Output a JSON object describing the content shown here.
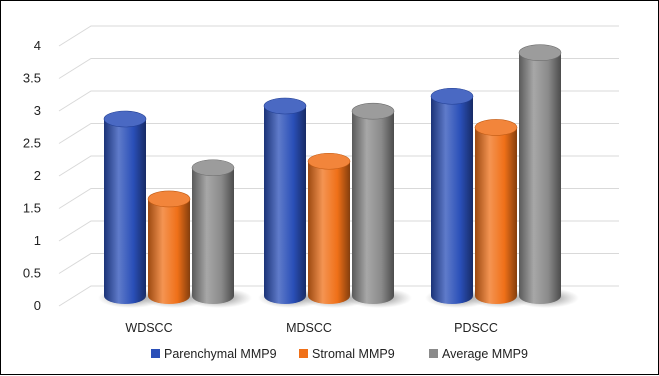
{
  "chart_data": {
    "type": "bar",
    "style": "3d-cylinder",
    "categories": [
      "WDSCC",
      "MDSCC",
      "PDSCC"
    ],
    "series": [
      {
        "name": "Parenchymal MMP9",
        "values": [
          2.8,
          3.0,
          3.15
        ],
        "color": "#2a4fb8"
      },
      {
        "name": "Stromal MMP9",
        "values": [
          1.57,
          2.15,
          2.67
        ],
        "color": "#f07018"
      },
      {
        "name": "Average MMP9",
        "values": [
          2.05,
          2.92,
          3.82
        ],
        "color": "#8a8a8a"
      }
    ],
    "yticks": [
      "0",
      "0.5",
      "1",
      "1.5",
      "2",
      "2.5",
      "3",
      "3.5",
      "4"
    ],
    "ylim": [
      0,
      4
    ],
    "grid": true,
    "legend": "bottom"
  }
}
